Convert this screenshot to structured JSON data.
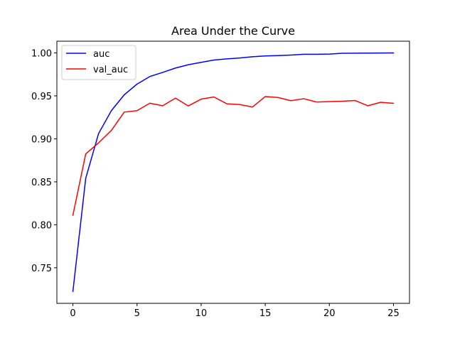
{
  "chart_data": {
    "type": "line",
    "title": "Area Under the Curve",
    "xlabel": "",
    "ylabel": "",
    "xlim": [
      -1.25,
      26.25
    ],
    "ylim": [
      0.7086,
      1.0136
    ],
    "xticks": [
      0,
      5,
      10,
      15,
      20,
      25
    ],
    "yticks": [
      0.75,
      0.8,
      0.85,
      0.9,
      0.95,
      1.0
    ],
    "ytick_labels": [
      "0.75",
      "0.80",
      "0.85",
      "0.90",
      "0.95",
      "1.00"
    ],
    "grid": false,
    "legend_position": "top-left",
    "x": [
      0,
      1,
      2,
      3,
      4,
      5,
      6,
      7,
      8,
      9,
      10,
      11,
      12,
      13,
      14,
      15,
      16,
      17,
      18,
      19,
      20,
      21,
      22,
      23,
      24,
      25
    ],
    "series": [
      {
        "name": "auc",
        "color": "#0000ff",
        "values": [
          0.7225,
          0.8541,
          0.9061,
          0.9328,
          0.9512,
          0.9637,
          0.9725,
          0.9773,
          0.9824,
          0.9862,
          0.989,
          0.9917,
          0.993,
          0.9941,
          0.9955,
          0.9964,
          0.9969,
          0.9975,
          0.9984,
          0.9984,
          0.9986,
          0.9996,
          0.9997,
          0.9998,
          0.9999,
          1.0
        ]
      },
      {
        "name": "val_auc",
        "color": "#ff0000",
        "values": [
          0.8112,
          0.8825,
          0.8953,
          0.9098,
          0.9311,
          0.9328,
          0.9415,
          0.9385,
          0.9474,
          0.9383,
          0.9462,
          0.9487,
          0.9408,
          0.9399,
          0.937,
          0.9492,
          0.9481,
          0.9444,
          0.9467,
          0.9428,
          0.9433,
          0.9438,
          0.9446,
          0.9385,
          0.9425,
          0.9413
        ]
      }
    ]
  }
}
